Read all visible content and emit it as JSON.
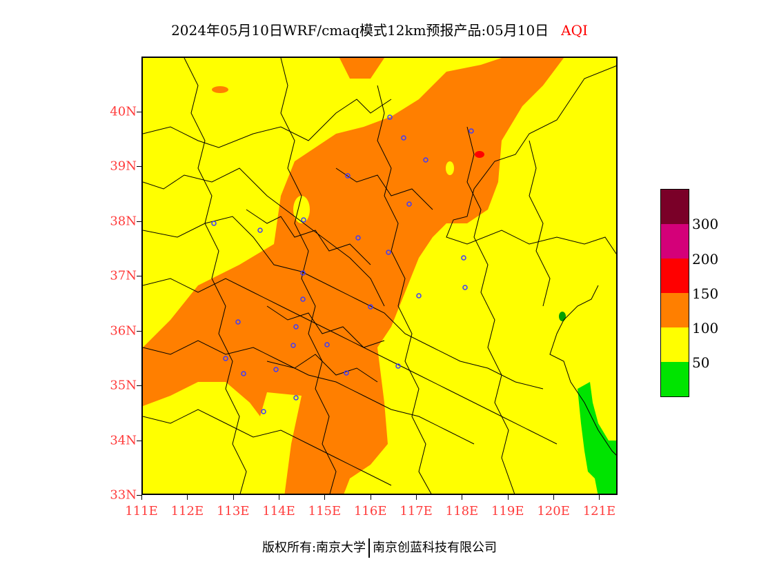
{
  "title": {
    "main": "2024年05月10日WRF/cmaq模式12km预报产品:05月10日",
    "product": "AQI"
  },
  "map": {
    "lat_labels": [
      "40N",
      "39N",
      "38N",
      "37N",
      "36N",
      "35N",
      "34N",
      "33N"
    ],
    "lon_labels": [
      "111E",
      "112E",
      "113E",
      "114E",
      "115E",
      "116E",
      "117E",
      "118E",
      "119E",
      "120E",
      "121E"
    ],
    "lat_range": [
      33,
      41
    ],
    "lon_range": [
      111,
      121.4
    ]
  },
  "legend": {
    "labels": [
      "300",
      "200",
      "150",
      "100",
      "50"
    ],
    "colors": [
      "#7a0028",
      "#d40079",
      "#ff0000",
      "#ff7f00",
      "#ffff00",
      "#00e400"
    ]
  },
  "footer": {
    "left": "版权所有:南京大学",
    "right": "南京创蓝科技有限公司"
  }
}
